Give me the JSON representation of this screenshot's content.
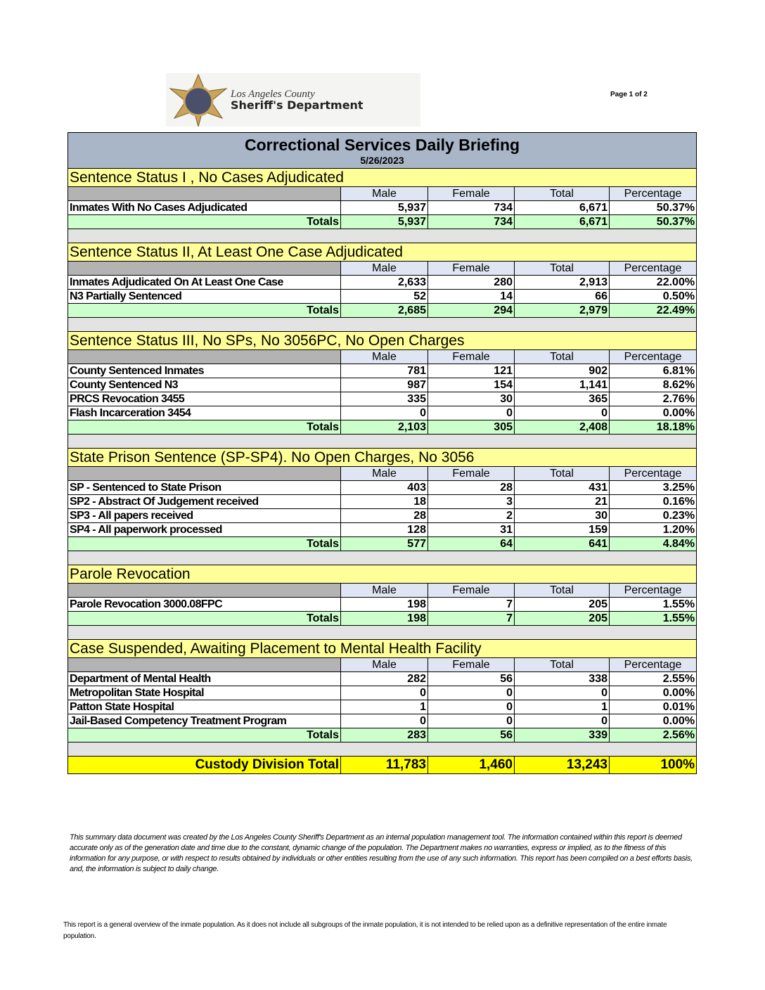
{
  "header": {
    "agency_line1": "Los Angeles County",
    "agency_line2": "Sheriff's Department",
    "page": "Page 1 of 2"
  },
  "report": {
    "title": "Correctional Services Daily Briefing",
    "date": "5/26/2023"
  },
  "columns": [
    "Male",
    "Female",
    "Total",
    "Percentage"
  ],
  "sections": [
    {
      "title": "Sentence Status I , No Cases Adjudicated",
      "rows": [
        [
          "Inmates With No Cases Adjudicated",
          "5,937",
          "734",
          "6,671",
          "50.37%"
        ]
      ],
      "totals": [
        "Totals",
        "5,937",
        "734",
        "6,671",
        "50.37%"
      ]
    },
    {
      "title": "Sentence Status II, At Least One Case Adjudicated",
      "rows": [
        [
          "Inmates Adjudicated On At Least One Case",
          "2,633",
          "280",
          "2,913",
          "22.00%"
        ],
        [
          "N3 Partially Sentenced",
          "52",
          "14",
          "66",
          "0.50%"
        ]
      ],
      "totals": [
        "Totals",
        "2,685",
        "294",
        "2,979",
        "22.49%"
      ]
    },
    {
      "title": "Sentence Status III, No SPs, No 3056PC, No Open Charges",
      "rows": [
        [
          "County Sentenced Inmates",
          "781",
          "121",
          "902",
          "6.81%"
        ],
        [
          "County Sentenced N3",
          "987",
          "154",
          "1,141",
          "8.62%"
        ],
        [
          "PRCS Revocation 3455",
          "335",
          "30",
          "365",
          "2.76%"
        ],
        [
          "Flash Incarceration 3454",
          "0",
          "0",
          "0",
          "0.00%"
        ]
      ],
      "totals": [
        "Totals",
        "2,103",
        "305",
        "2,408",
        "18.18%"
      ]
    },
    {
      "title": "State Prison Sentence (SP-SP4). No Open Charges, No 3056",
      "rows": [
        [
          "SP - Sentenced to State Prison",
          "403",
          "28",
          "431",
          "3.25%"
        ],
        [
          "SP2 - Abstract Of Judgement received",
          "18",
          "3",
          "21",
          "0.16%"
        ],
        [
          "SP3 - All papers received",
          "28",
          "2",
          "30",
          "0.23%"
        ],
        [
          "SP4 - All paperwork processed",
          "128",
          "31",
          "159",
          "1.20%"
        ]
      ],
      "totals": [
        "Totals",
        "577",
        "64",
        "641",
        "4.84%"
      ]
    },
    {
      "title": "Parole Revocation",
      "rows": [
        [
          "Parole Revocation 3000.08FPC",
          "198",
          "7",
          "205",
          "1.55%"
        ]
      ],
      "totals": [
        "Totals",
        "198",
        "7",
        "205",
        "1.55%"
      ]
    },
    {
      "title": "Case Suspended, Awaiting Placement to Mental Health Facility",
      "rows": [
        [
          "Department of Mental Health",
          "282",
          "56",
          "338",
          "2.55%"
        ],
        [
          "Metropolitan State Hospital",
          "0",
          "0",
          "0",
          "0.00%"
        ],
        [
          "Patton State Hospital",
          "1",
          "0",
          "1",
          "0.01%"
        ],
        [
          "Jail-Based Competency Treatment Program",
          "0",
          "0",
          "0",
          "0.00%"
        ]
      ],
      "totals": [
        "Totals",
        "283",
        "56",
        "339",
        "2.56%"
      ]
    }
  ],
  "grand_total": [
    "Custody Division Total",
    "11,783",
    "1,460",
    "13,243",
    "100%"
  ],
  "disclaimer": "This summary data document was created by the Los Angeles County Sheriff's Department as an internal population management tool.  The information contained within this report is deemed accurate only as of the generation date and time due to the constant, dynamic change of the population.  The Department makes no warranties, express or implied, as to the fitness of this information for any purpose, or with respect to results obtained by individuals or other entities resulting from the use of any such information.  This report has been compiled on a best efforts basis, and, the information is subject to daily change.",
  "footnote": "This report is a general overview of the inmate population.  As it does not include all subgroups of the inmate population, it is not intended to be relied upon as a definitive representation of the entire inmate population."
}
